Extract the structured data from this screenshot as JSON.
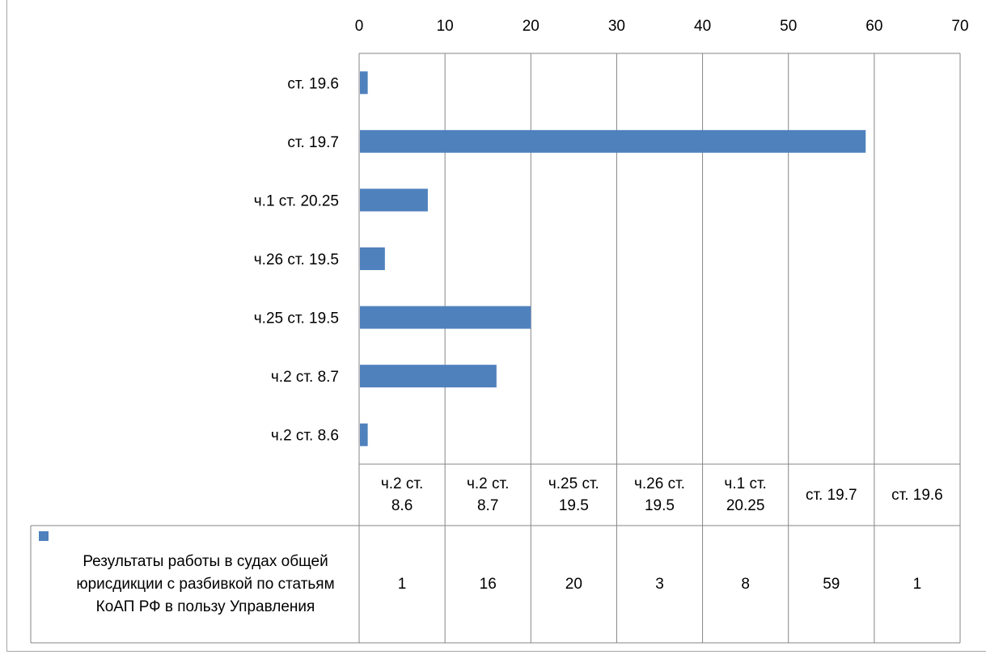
{
  "chart_data": {
    "type": "bar",
    "orientation": "horizontal",
    "categories": [
      "ч.2 ст. 8.6",
      "ч.2 ст. 8.7",
      "ч.25 ст. 19.5",
      "ч.26 ст. 19.5",
      "ч.1 ст. 20.25",
      "ст. 19.7",
      "ст. 19.6"
    ],
    "series": [
      {
        "name": "Результаты работы в судах общей юрисдикции с разбивкой по статьям КоАП РФ в пользу Управления",
        "values": [
          1,
          16,
          20,
          3,
          8,
          59,
          1
        ]
      }
    ],
    "xlim": [
      0,
      70
    ],
    "x_ticks": [
      "0",
      "10",
      "20",
      "30",
      "40",
      "50",
      "60",
      "70"
    ],
    "title": "",
    "xlabel": "",
    "ylabel": "",
    "grid": true,
    "axis_position": "top",
    "legend_position": "bottom (data table)",
    "data_table": {
      "column_headers": [
        "ч.2 ст.\n8.6",
        "ч.2 ст.\n8.7",
        "ч.25 ст.\n19.5",
        "ч.26 ст.\n19.5",
        "ч.1 ст.\n20.25",
        "ст. 19.7",
        "ст. 19.6"
      ],
      "values": [
        "1",
        "16",
        "20",
        "3",
        "8",
        "59",
        "1"
      ]
    },
    "colors": {
      "bar": "#4f81bd",
      "grid": "#868686"
    }
  }
}
